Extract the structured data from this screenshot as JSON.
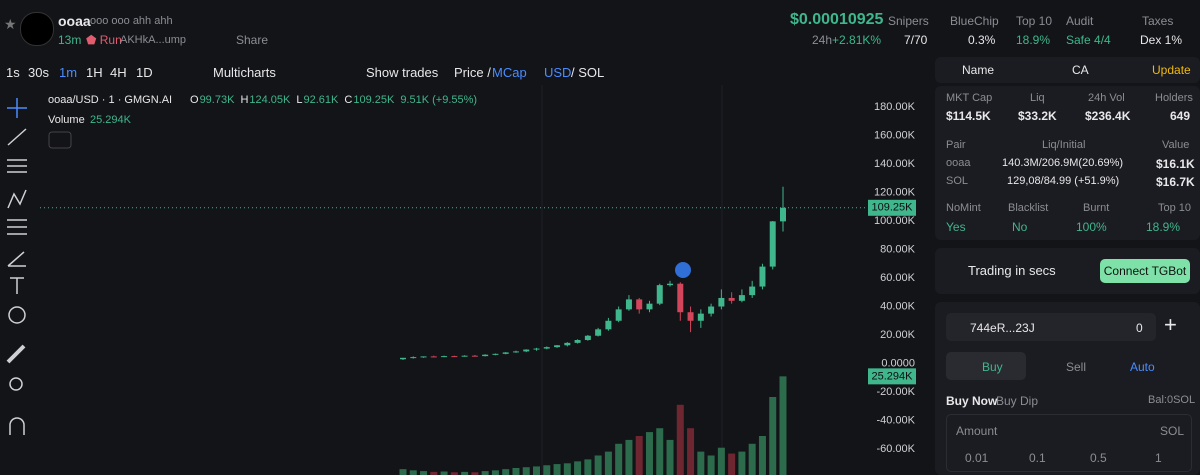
{
  "header": {
    "name": "ooaa",
    "description": "ooo ooo ahh ahh",
    "age": "13m",
    "status": "Run",
    "address": "AKHkA...ump",
    "share": "Share",
    "price": "$0.00010925",
    "change_period": "24h",
    "change": "+2.81K%",
    "stats": [
      {
        "label": "Snipers",
        "value": "7/70"
      },
      {
        "label": "BlueChip",
        "value": "0.3%"
      },
      {
        "label": "Top 10",
        "value": "18.9%"
      },
      {
        "label": "Audit",
        "value": "Safe 4/4"
      },
      {
        "label": "Taxes",
        "value": "Dex 1%"
      }
    ]
  },
  "toolbar": {
    "intervals": [
      "1s",
      "30s",
      "1m",
      "1H",
      "4H",
      "1D"
    ],
    "multicharts": "Multicharts",
    "show_trades": "Show trades",
    "price": "Price /",
    "mcap": "MCap",
    "usd": "USD",
    "sol": "/ SOL"
  },
  "chart_data": {
    "type": "candlestick",
    "title": "ooaa/USD · 1 · GMGN.AI",
    "legend": [
      {
        "label": "O",
        "value": "99.73K"
      },
      {
        "label": "H",
        "value": "124.05K"
      },
      {
        "label": "L",
        "value": "92.61K"
      },
      {
        "label": "C",
        "value": "109.25K"
      }
    ],
    "change": "9.51K (+9.55%)",
    "volume_title": "Volume",
    "volume_value": "25.294K",
    "ylim": [
      -78200,
      195400
    ],
    "y2lim": [
      0,
      100000
    ],
    "grid": false,
    "yticks": [
      {
        "value": 180000,
        "label": "180.00K"
      },
      {
        "value": 160000,
        "label": "160.00K"
      },
      {
        "value": 140000,
        "label": "140.00K"
      },
      {
        "value": 120000,
        "label": "120.00K"
      },
      {
        "value": 100000,
        "label": "100.00K"
      },
      {
        "value": 80000,
        "label": "80.00K"
      },
      {
        "value": 60000,
        "label": "60.00K"
      },
      {
        "value": 40000,
        "label": "40.00K"
      },
      {
        "value": 20000,
        "label": "20.00K"
      },
      {
        "value": 0,
        "label": "0.0000"
      },
      {
        "value": -20000,
        "label": "-20.00K"
      },
      {
        "value": -40000,
        "label": "-40.00K"
      },
      {
        "value": -60000,
        "label": "-60.00K"
      }
    ],
    "up_color": "#3fb68b",
    "down_color": "#d2455a",
    "open": [
      3000,
      4000,
      4500,
      5000,
      4800,
      5200,
      5000,
      5500,
      5200,
      6200,
      6800,
      7800,
      8500,
      9800,
      10500,
      11500,
      12800,
      14500,
      16500,
      19500,
      24000,
      30000,
      38000,
      45000,
      38000,
      42000,
      55000,
      56000,
      36000,
      30000,
      35000,
      40000,
      46000,
      44000,
      48000,
      54000,
      68000,
      99730
    ],
    "high": [
      4000,
      5000,
      5000,
      5500,
      5500,
      5500,
      5800,
      6000,
      6500,
      7000,
      8000,
      9000,
      10000,
      11000,
      12000,
      13000,
      15000,
      17000,
      20000,
      25000,
      32000,
      40000,
      48000,
      46000,
      44000,
      56000,
      58000,
      57000,
      40000,
      38000,
      42000,
      52000,
      50000,
      52000,
      58000,
      70000,
      100000,
      124050
    ],
    "low": [
      2500,
      3500,
      4000,
      4500,
      4500,
      4800,
      4800,
      5000,
      5000,
      5800,
      6500,
      7500,
      8000,
      9000,
      10000,
      11000,
      12000,
      14000,
      16000,
      19000,
      23000,
      29000,
      37000,
      35000,
      36000,
      41000,
      54000,
      30000,
      22000,
      25000,
      33000,
      38000,
      42000,
      43000,
      46000,
      52000,
      66000,
      92610
    ],
    "close": [
      4000,
      4500,
      5000,
      4800,
      5200,
      5000,
      5500,
      5200,
      6200,
      6800,
      7800,
      8500,
      9800,
      10500,
      11500,
      12800,
      14500,
      16500,
      19500,
      24000,
      30000,
      38000,
      45000,
      38000,
      42000,
      55000,
      56000,
      36000,
      30000,
      35000,
      40000,
      46000,
      44000,
      48000,
      54000,
      68000,
      99740,
      109250
    ],
    "volume": [
      1500,
      1200,
      1000,
      800,
      900,
      700,
      800,
      700,
      1000,
      1200,
      1500,
      1800,
      2000,
      2200,
      2500,
      2800,
      3000,
      3500,
      4000,
      5000,
      6000,
      8000,
      9000,
      10000,
      11000,
      12000,
      9000,
      18000,
      12000,
      6000,
      5000,
      7000,
      5500,
      6000,
      8000,
      10000,
      20000,
      25294
    ]
  },
  "panel": {
    "tabs": [
      "Name",
      "CA",
      "Update"
    ],
    "metrics": [
      {
        "label": "MKT Cap",
        "value": "$114.5K"
      },
      {
        "label": "Liq",
        "value": "$33.2K"
      },
      {
        "label": "24h Vol",
        "value": "$236.4K"
      },
      {
        "label": "Holders",
        "value": "649"
      }
    ],
    "pair_headers": [
      "Pair",
      "Liq/Initial",
      "Value"
    ],
    "pairs": [
      [
        "ooaa",
        "140.3M/206.9M(20.69%)",
        "$16.1K"
      ],
      [
        "SOL",
        "129,08/84.99 (+51.9%)",
        "$16.7K"
      ]
    ],
    "flags": [
      {
        "label": "NoMint",
        "value": "Yes"
      },
      {
        "label": "Blacklist",
        "value": "No"
      },
      {
        "label": "Burnt",
        "value": "100%"
      },
      {
        "label": "Top 10",
        "value": "18.9%"
      }
    ],
    "trading": "Trading in secs",
    "connect": "Connect TGBot",
    "wallet": "744eR...23J",
    "wallet_count": "0",
    "modes": [
      "Buy",
      "Sell",
      "Auto"
    ],
    "buy_now": "Buy Now",
    "buy_dip": "Buy Dip",
    "balance": "Bal:0SOL",
    "amount": "Amount",
    "amount_unit": "SOL",
    "presets": [
      "0.01",
      "0.1",
      "0.5",
      "1"
    ]
  }
}
